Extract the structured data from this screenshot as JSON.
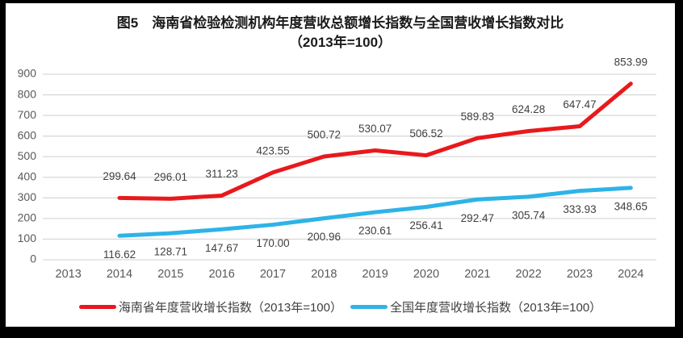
{
  "title": {
    "line1": "图5　海南省检验检测机构年度营收总额增长指数与全国营收增长指数对比",
    "line2": "（2013年=100）"
  },
  "chart_data": {
    "type": "line",
    "categories": [
      "2013",
      "2014",
      "2015",
      "2016",
      "2017",
      "2018",
      "2019",
      "2020",
      "2021",
      "2022",
      "2023",
      "2024"
    ],
    "series": [
      {
        "name": "海南省年度营收增长指数（2013年=100）",
        "color": "#e8191d",
        "values": [
          null,
          299.64,
          296.01,
          311.23,
          423.55,
          500.72,
          530.07,
          506.52,
          589.83,
          624.28,
          647.47,
          853.99
        ],
        "labels": [
          null,
          "299.64",
          "296.01",
          "311.23",
          "423.55",
          "500.72",
          "530.07",
          "506.52",
          "589.83",
          "624.28",
          "647.47",
          "853.99"
        ],
        "label_position": "above"
      },
      {
        "name": "全国年度营收增长指数（2013年=100）",
        "color": "#2eb3e7",
        "values": [
          null,
          116.62,
          128.71,
          147.67,
          170.0,
          200.96,
          230.61,
          256.41,
          292.47,
          305.74,
          333.93,
          348.65
        ],
        "labels": [
          null,
          "116.62",
          "128.71",
          "147.67",
          "170.00",
          "200.96",
          "230.61",
          "256.41",
          "292.47",
          "305.74",
          "333.93",
          "348.65"
        ],
        "label_position": "below"
      }
    ],
    "ylim": [
      0,
      900
    ],
    "yticks": [
      0,
      100,
      200,
      300,
      400,
      500,
      600,
      700,
      800,
      900
    ],
    "grid": "horizontal",
    "legend_position": "bottom",
    "colors": {
      "gridline": "#d9d9d9",
      "axis_text": "#595959",
      "data_label_text": "#404040",
      "title_text": "#1a1a1a",
      "frame": "#000000",
      "background": "#ffffff"
    }
  }
}
